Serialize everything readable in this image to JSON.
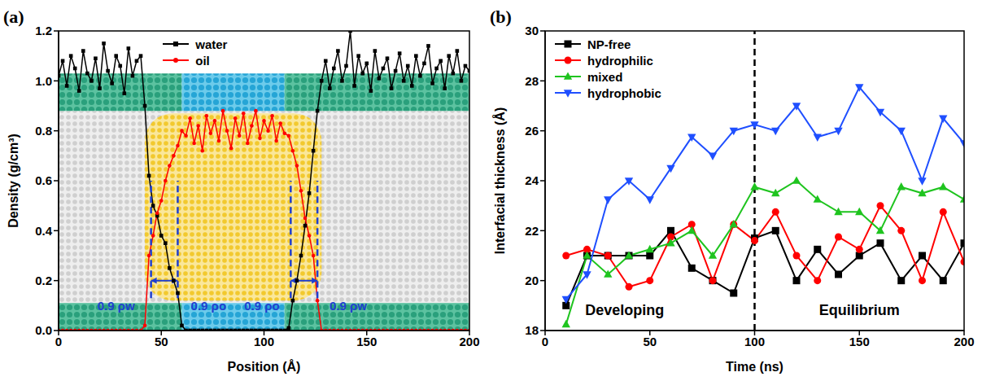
{
  "chart_data": [
    {
      "panel": "(a)",
      "type": "line",
      "x": [
        0,
        2,
        4,
        6,
        8,
        10,
        12,
        14,
        16,
        18,
        20,
        22,
        24,
        26,
        28,
        30,
        32,
        34,
        36,
        38,
        40,
        42,
        44,
        46,
        48,
        50,
        52,
        54,
        56,
        58,
        60,
        62,
        64,
        66,
        68,
        70,
        72,
        74,
        76,
        78,
        80,
        82,
        84,
        86,
        88,
        90,
        92,
        94,
        96,
        98,
        100,
        102,
        104,
        106,
        108,
        110,
        112,
        114,
        116,
        118,
        120,
        122,
        124,
        126,
        128,
        130,
        132,
        134,
        136,
        138,
        140,
        142,
        144,
        146,
        148,
        150,
        152,
        154,
        156,
        158,
        160,
        162,
        164,
        166,
        168,
        170,
        172,
        174,
        176,
        178,
        180,
        182,
        184,
        186,
        188,
        190,
        192,
        194,
        196,
        198,
        200
      ],
      "xlim": [
        0,
        200
      ],
      "xticks": [
        0,
        50,
        100,
        150,
        200
      ],
      "ylim": [
        0,
        1.2
      ],
      "yticks": [
        {
          "value": 0,
          "label": "0.0"
        },
        0.2,
        0.4,
        0.6,
        0.8,
        {
          "value": 1,
          "label": "1.0"
        },
        1.2
      ],
      "x_label": "Position (Å)",
      "y_label": "Density (g/cm³)",
      "legend": "top",
      "grid": false,
      "series": [
        {
          "name": "water",
          "color": "#000000",
          "marker": "square",
          "values": [
            1.02,
            1.08,
            0.98,
            1.1,
            1.05,
            0.96,
            1.12,
            1.03,
            1.0,
            1.09,
            0.97,
            1.15,
            1.04,
            0.99,
            1.1,
            1.06,
            0.95,
            1.13,
            1.02,
            1.08,
            1.1,
            0.9,
            0.62,
            0.5,
            0.46,
            0.38,
            0.35,
            0.25,
            0.2,
            0.15,
            0.02,
            0,
            0,
            0,
            0,
            0,
            0,
            0,
            0,
            0,
            0,
            0,
            0,
            0,
            0,
            0,
            0,
            0,
            0,
            0,
            0,
            0,
            0,
            0,
            0,
            0,
            0.01,
            0.12,
            0.2,
            0.3,
            0.42,
            0.55,
            0.72,
            0.88,
            1.0,
            1.08,
            0.97,
            1.05,
            1.12,
            1.0,
            1.06,
            1.2,
            0.98,
            1.1,
            1.03,
            1.07,
            0.96,
            1.12,
            1.01,
            1.05,
            1.09,
            0.97,
            1.04,
            1.11,
            1.0,
            1.06,
            0.98,
            1.1,
            1.02,
            1.07,
            1.14,
            0.99,
            1.05,
            1.08,
            0.97,
            1.1,
            1.03,
            1.12,
            1.0,
            1.06,
            1.04
          ]
        },
        {
          "name": "oil",
          "color": "#ff0000",
          "marker": "circle",
          "values": [
            0,
            0,
            0,
            0,
            0,
            0,
            0,
            0,
            0,
            0,
            0,
            0,
            0,
            0,
            0,
            0,
            0,
            0,
            0,
            0,
            0,
            0.02,
            0.3,
            0.38,
            0.47,
            0.52,
            0.6,
            0.66,
            0.7,
            0.74,
            0.8,
            0.78,
            0.85,
            0.75,
            0.82,
            0.72,
            0.86,
            0.79,
            0.84,
            0.76,
            0.88,
            0.8,
            0.73,
            0.85,
            0.78,
            0.87,
            0.75,
            0.82,
            0.88,
            0.77,
            0.84,
            0.8,
            0.86,
            0.76,
            0.83,
            0.79,
            0.78,
            0.72,
            0.66,
            0.56,
            0.45,
            0.38,
            0.3,
            0.12,
            0,
            0,
            0,
            0,
            0,
            0,
            0,
            0,
            0,
            0,
            0,
            0,
            0,
            0,
            0,
            0,
            0,
            0,
            0,
            0,
            0,
            0,
            0,
            0,
            0,
            0,
            0,
            0,
            0,
            0,
            0,
            0,
            0,
            0,
            0,
            0,
            0
          ]
        }
      ],
      "boundaries": {
        "x": [
          45,
          58,
          113,
          126
        ],
        "y": [
          0.13,
          0.6
        ],
        "color": "#1f3fd0",
        "line_style": "dashed"
      },
      "arrows": [
        {
          "x": [
            45,
            58
          ],
          "y": 0.2
        },
        {
          "x": [
            113,
            126
          ],
          "y": 0.2
        }
      ],
      "annotations": [
        {
          "text": "0.9 ρw",
          "x": 28,
          "y": 0.1,
          "color": "#1f3fd0"
        },
        {
          "text": "0.9 ρo",
          "x": 73,
          "y": 0.1,
          "color": "#1f3fd0"
        },
        {
          "text": "0.9 ρo",
          "x": 99,
          "y": 0.1,
          "color": "#1f3fd0"
        },
        {
          "text": "0.9 ρw",
          "x": 141,
          "y": 0.1,
          "color": "#1f3fd0"
        }
      ]
    },
    {
      "panel": "(b)",
      "type": "line",
      "x": [
        10,
        20,
        30,
        40,
        50,
        60,
        70,
        80,
        90,
        100,
        110,
        120,
        130,
        140,
        150,
        160,
        170,
        180,
        190,
        200
      ],
      "xlim": [
        0,
        200
      ],
      "xticks": [
        0,
        50,
        100,
        150,
        200
      ],
      "ylim": [
        18,
        30
      ],
      "yticks": [
        18,
        20,
        22,
        24,
        26,
        28,
        30
      ],
      "x_label": "Time (ns)",
      "y_label": "Interfacial thickness (Å)",
      "legend": "upper left",
      "grid": false,
      "series": [
        {
          "name": "NP-free",
          "color": "#000000",
          "marker": "square",
          "values": [
            19.0,
            21.0,
            21.0,
            21.0,
            21.0,
            22.0,
            20.5,
            20.0,
            19.5,
            21.7,
            22.0,
            20.0,
            21.25,
            20.25,
            21.0,
            21.5,
            20.0,
            21.0,
            20.0,
            21.5
          ]
        },
        {
          "name": "hydrophilic",
          "color": "#ff0000",
          "marker": "circle",
          "values": [
            21.0,
            21.25,
            21.0,
            19.75,
            20.0,
            21.75,
            22.25,
            20.0,
            22.25,
            21.6,
            22.75,
            21.0,
            20.0,
            21.75,
            21.25,
            23.0,
            22.0,
            20.0,
            22.75,
            20.75
          ]
        },
        {
          "name": "mixed",
          "color": "#1fc41f",
          "marker": "triangle",
          "values": [
            18.25,
            21.0,
            20.25,
            21.0,
            21.25,
            21.5,
            22.0,
            21.0,
            22.25,
            23.75,
            23.5,
            24.0,
            23.25,
            22.75,
            22.75,
            22.0,
            23.75,
            23.5,
            23.75,
            23.25
          ]
        },
        {
          "name": "hydrophobic",
          "color": "#1f4fff",
          "marker": "triangle_down",
          "values": [
            19.25,
            20.25,
            23.25,
            24.0,
            23.25,
            24.5,
            25.75,
            25.0,
            26.0,
            26.25,
            26.0,
            27.0,
            25.75,
            26.0,
            27.75,
            26.75,
            26.0,
            24.0,
            26.5,
            25.5
          ]
        }
      ],
      "vlines": [
        {
          "x": 100,
          "color": "#000000",
          "line_style": "dashed"
        }
      ],
      "annotations": [
        {
          "text": "Developing",
          "x": 38,
          "y": 18.8,
          "color": "#000000"
        },
        {
          "text": "Equilibrium",
          "x": 150,
          "y": 18.8,
          "color": "#000000"
        }
      ]
    }
  ]
}
